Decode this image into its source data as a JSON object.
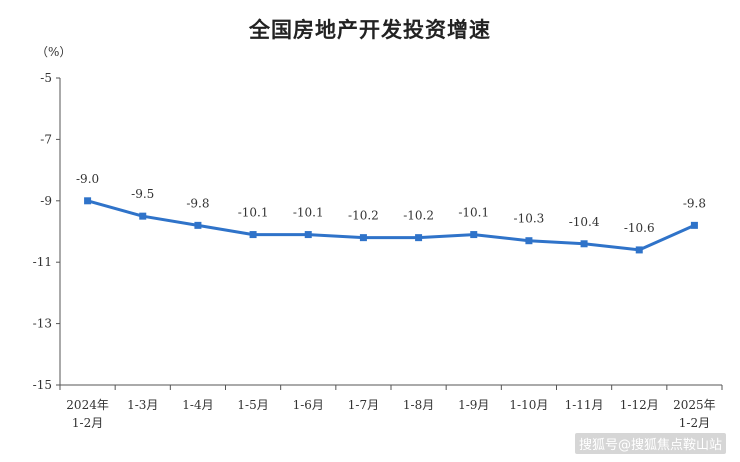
{
  "chart_data": {
    "type": "line",
    "title": "全国房地产开发投资增速",
    "ylabel": "（%）",
    "xlabel": "",
    "ylim": [
      -15,
      -5
    ],
    "yticks": [
      -5,
      -7,
      -9,
      -11,
      -13,
      -15
    ],
    "grid": false,
    "legend": "none",
    "categories": [
      [
        "2024年",
        "1-2月"
      ],
      [
        "1-3月"
      ],
      [
        "1-4月"
      ],
      [
        "1-5月"
      ],
      [
        "1-6月"
      ],
      [
        "1-7月"
      ],
      [
        "1-8月"
      ],
      [
        "1-9月"
      ],
      [
        "1-10月"
      ],
      [
        "1-11月"
      ],
      [
        "1-12月"
      ],
      [
        "2025年",
        "1-2月"
      ]
    ],
    "series": [
      {
        "values": [
          -9.0,
          -9.5,
          -9.8,
          -10.1,
          -10.1,
          -10.2,
          -10.2,
          -10.1,
          -10.3,
          -10.4,
          -10.6,
          -9.8
        ],
        "data_labels": [
          "-9.0",
          "-9.5",
          "-9.8",
          "-10.1",
          "-10.1",
          "-10.2",
          "-10.2",
          "-10.1",
          "-10.3",
          "-10.4",
          "-10.6",
          "-9.8"
        ],
        "color": "#2f73c9"
      }
    ]
  },
  "watermark": "搜狐号@搜狐焦点鞍山站"
}
